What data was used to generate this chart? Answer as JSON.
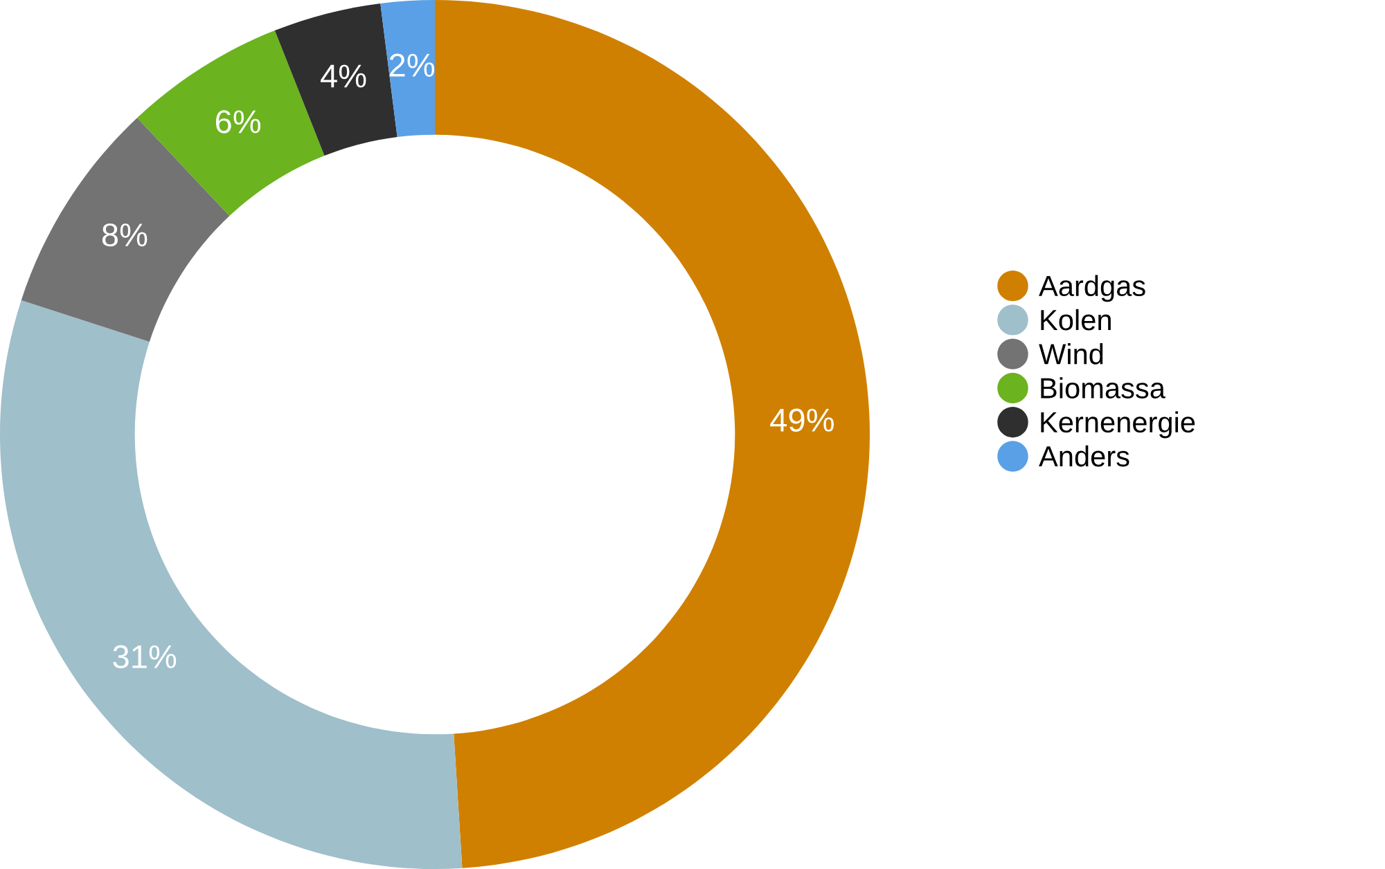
{
  "chart_data": {
    "type": "donut",
    "categories": [
      "Aardgas",
      "Kolen",
      "Wind",
      "Biomassa",
      "Kernenergie",
      "Anders"
    ],
    "values": [
      49,
      31,
      8,
      6,
      4,
      2
    ],
    "colors": [
      "#d08000",
      "#9fbfca",
      "#737373",
      "#6bb31f",
      "#2f2f2f",
      "#5aa0e6"
    ],
    "value_labels": [
      "49%",
      "31%",
      "8%",
      "6%",
      "4%",
      "2%"
    ],
    "legend": "right"
  }
}
